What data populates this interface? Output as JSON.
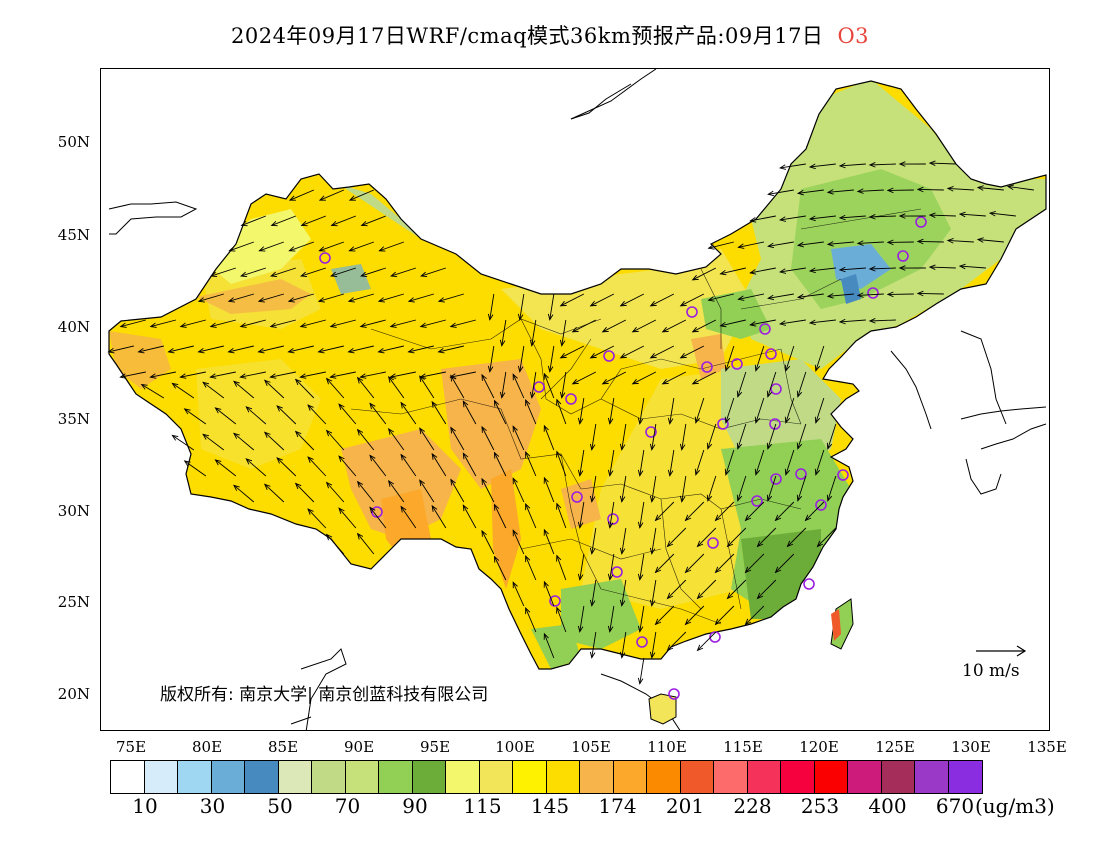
{
  "title": {
    "main": "2024年09月17日WRF/cmaq模式36km预报产品:09月17日",
    "species": "O3",
    "species_color": "#e8453c"
  },
  "map": {
    "lat_labels": [
      "50N",
      "45N",
      "40N",
      "35N",
      "30N",
      "25N",
      "20N"
    ],
    "lon_labels": [
      "75E",
      "80E",
      "85E",
      "90E",
      "95E",
      "100E",
      "105E",
      "110E",
      "115E",
      "120E",
      "125E",
      "130E",
      "135E"
    ],
    "copyright": "版权所有: 南京大学| 南京创蓝科技有限公司",
    "wind_reference": "10 m/s"
  },
  "colorbar": {
    "colors": [
      "#ffffff",
      "#d6ecfa",
      "#9fd6f2",
      "#6aaed8",
      "#468ac0",
      "#dde8b9",
      "#c0da86",
      "#c6e179",
      "#91cf55",
      "#6cac38",
      "#f2f76b",
      "#f2e55a",
      "#fef200",
      "#fddc00",
      "#f6b44a",
      "#fca92b",
      "#fc8a00",
      "#f05a2a",
      "#fd6b6b",
      "#f5335a",
      "#f6003e",
      "#fb0000",
      "#cc1b7b",
      "#a42d59",
      "#9a38c8",
      "#8a2ce0"
    ],
    "labels": [
      "10",
      "30",
      "50",
      "70",
      "90",
      "115",
      "145",
      "174",
      "201",
      "228",
      "253",
      "400",
      "670"
    ],
    "unit": "(ug/m3)"
  }
}
